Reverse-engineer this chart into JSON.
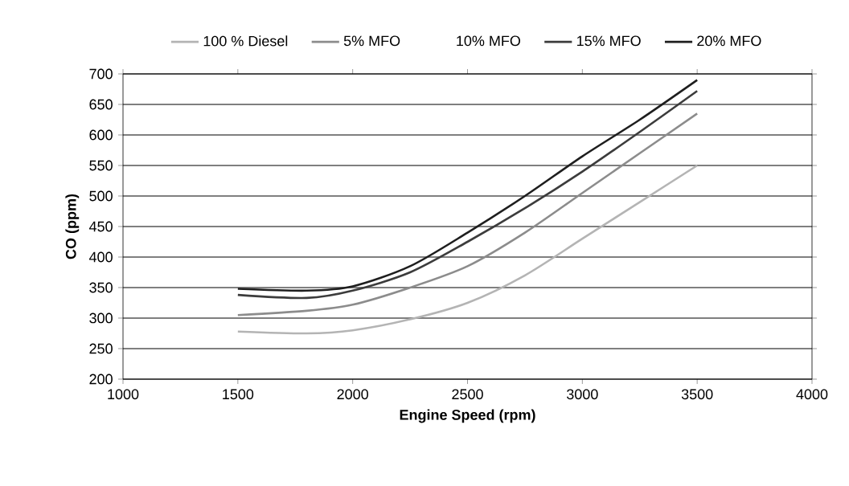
{
  "chart_data": {
    "type": "line",
    "xlabel": "Engine Speed (rpm)",
    "ylabel": "CO (ppm)",
    "x": [
      1500,
      1800,
      2000,
      2250,
      2500,
      2750,
      3000,
      3250,
      3500
    ],
    "series": [
      {
        "name": "100 % Diesel",
        "color": "#b4b4b4",
        "values": [
          278,
          275,
          280,
          298,
          325,
          370,
          430,
          490,
          550
        ]
      },
      {
        "name": "5% MFO",
        "color": "#8c8c8c",
        "values": [
          305,
          312,
          322,
          350,
          385,
          440,
          505,
          570,
          635
        ]
      },
      {
        "name": "10% MFO",
        "values": [
          null,
          null,
          null,
          null,
          null,
          null,
          null,
          null,
          null
        ]
      },
      {
        "name": "15% MFO",
        "color": "#3c3c3c",
        "values": [
          338,
          333,
          345,
          375,
          425,
          480,
          540,
          605,
          672
        ]
      },
      {
        "name": "20% MFO",
        "color": "#1e1e1e",
        "values": [
          348,
          345,
          352,
          385,
          440,
          500,
          565,
          625,
          690
        ]
      }
    ],
    "xlim": [
      1000,
      4000
    ],
    "xticks": [
      1000,
      1500,
      2000,
      2500,
      3000,
      3500,
      4000
    ],
    "ylim": [
      200,
      700
    ],
    "yticks": [
      200,
      250,
      300,
      350,
      400,
      450,
      500,
      550,
      600,
      650,
      700
    ],
    "grid": "y",
    "legend": "top",
    "marker": "none",
    "line_style": "solid"
  }
}
